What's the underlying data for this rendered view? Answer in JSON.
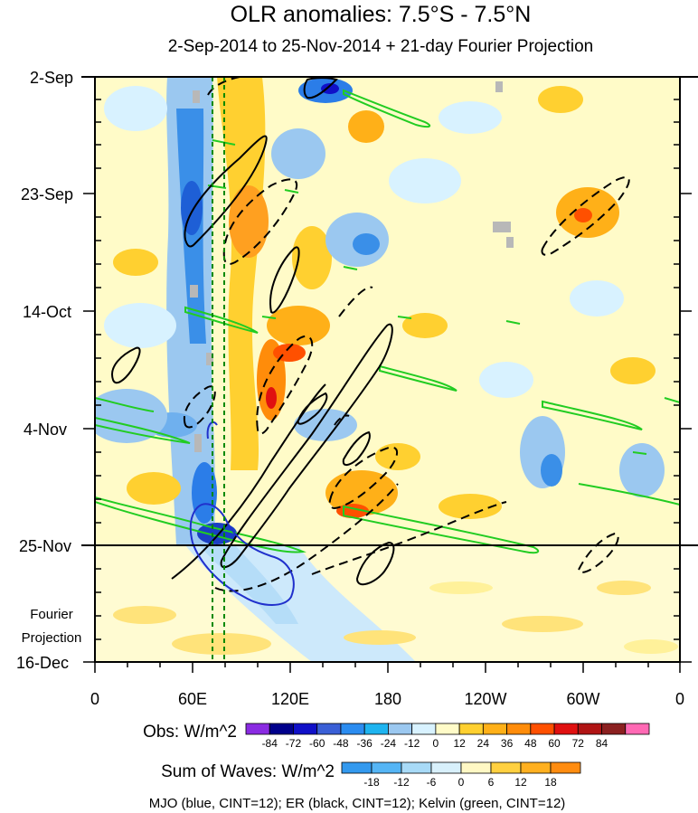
{
  "chart_data": {
    "type": "heatmap",
    "title": "OLR anomalies: 7.5°S - 7.5°N",
    "subtitle": "2-Sep-2014 to 25-Nov-2014 + 21-day Fourier Projection",
    "x_axis": {
      "tick_labels": [
        "0",
        "60E",
        "120E",
        "180",
        "120W",
        "60W",
        "0"
      ],
      "range_deg_east": [
        0,
        360
      ]
    },
    "y_axis": {
      "tick_labels": [
        "2-Sep",
        "23-Sep",
        "14-Oct",
        "4-Nov",
        "25-Nov",
        "16-Dec"
      ],
      "reversed": true,
      "range": [
        "2-Sep-2014",
        "16-Dec-2014"
      ]
    },
    "observation_end": "25-Nov",
    "projection_label": [
      "Fourier",
      "Projection"
    ],
    "reference_longitudes_deg_east": [
      72,
      80
    ],
    "colorbar_obs": {
      "label": "Obs: W/m^2",
      "levels": [
        -84,
        -72,
        -60,
        -48,
        -36,
        -24,
        -12,
        0,
        12,
        24,
        36,
        48,
        60,
        72,
        84
      ],
      "colors": [
        "#8a2be2",
        "#00008b",
        "#1010c8",
        "#3a5fd6",
        "#2b8cf0",
        "#1eb4f0",
        "#9bc8f0",
        "#d8f2ff",
        "#fffbc8",
        "#ffd030",
        "#ffb018",
        "#ff8c0a",
        "#ff5000",
        "#e01010",
        "#b01414",
        "#8b2020",
        "#ff69b4"
      ]
    },
    "colorbar_waves": {
      "label": "Sum of Waves: W/m^2",
      "levels": [
        -18,
        -12,
        -6,
        0,
        6,
        12,
        18
      ],
      "colors": [
        "#3399ee",
        "#55b5f5",
        "#a8daf7",
        "#d8f0fb",
        "#fff8c4",
        "#ffd040",
        "#ffb020",
        "#ff8c10"
      ]
    },
    "contour_legend": "MJO (blue, CINT=12); ER (black, CINT=12); Kelvin (green, CINT=12)"
  }
}
